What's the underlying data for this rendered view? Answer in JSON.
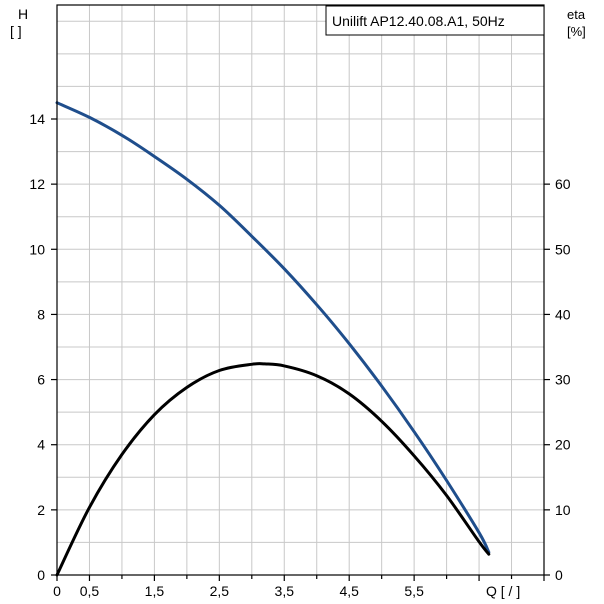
{
  "chart_data": {
    "type": "line",
    "title": "Unilift AP12.40.08.A1, 50Hz",
    "left_axis": {
      "label_top": "H",
      "label_unit": "[ ]",
      "ylim": [
        0,
        17.5
      ],
      "ticks": [
        0,
        2,
        4,
        6,
        8,
        10,
        12,
        14
      ]
    },
    "right_axis": {
      "label_top": "eta",
      "label_unit": "[%]",
      "ylim": [
        0,
        87.5
      ],
      "ticks": [
        0,
        10,
        20,
        30,
        40,
        50,
        60
      ]
    },
    "x_axis": {
      "label": "Q [  /  ]",
      "xlim": [
        0,
        7.5
      ],
      "tick_labels": [
        "0",
        "0,5",
        "1,5",
        "2,5",
        "3,5",
        "4,5",
        "5,5"
      ],
      "tick_values": [
        0,
        0.5,
        1.5,
        2.5,
        3.5,
        4.5,
        5.5
      ]
    },
    "grid": true,
    "series": [
      {
        "axis": "left",
        "color": "#1f4e8c",
        "x": [
          0,
          0.5,
          1.0,
          1.5,
          2.0,
          2.5,
          3.0,
          3.5,
          4.0,
          4.5,
          5.0,
          5.5,
          6.0,
          6.5,
          6.65
        ],
        "y": [
          14.5,
          14.05,
          13.5,
          12.85,
          12.15,
          11.35,
          10.4,
          9.4,
          8.3,
          7.1,
          5.8,
          4.4,
          2.9,
          1.3,
          0.7
        ]
      },
      {
        "axis": "right",
        "color": "#000000",
        "x": [
          0,
          0.5,
          1.0,
          1.5,
          2.0,
          2.5,
          3.0,
          3.2,
          3.5,
          4.0,
          4.5,
          5.0,
          5.5,
          6.0,
          6.5,
          6.65
        ],
        "y": [
          0,
          10.4,
          18.5,
          24.6,
          28.8,
          31.4,
          32.35,
          32.4,
          32.1,
          30.6,
          27.8,
          23.6,
          18.3,
          12.2,
          5.1,
          3.2
        ]
      }
    ]
  }
}
